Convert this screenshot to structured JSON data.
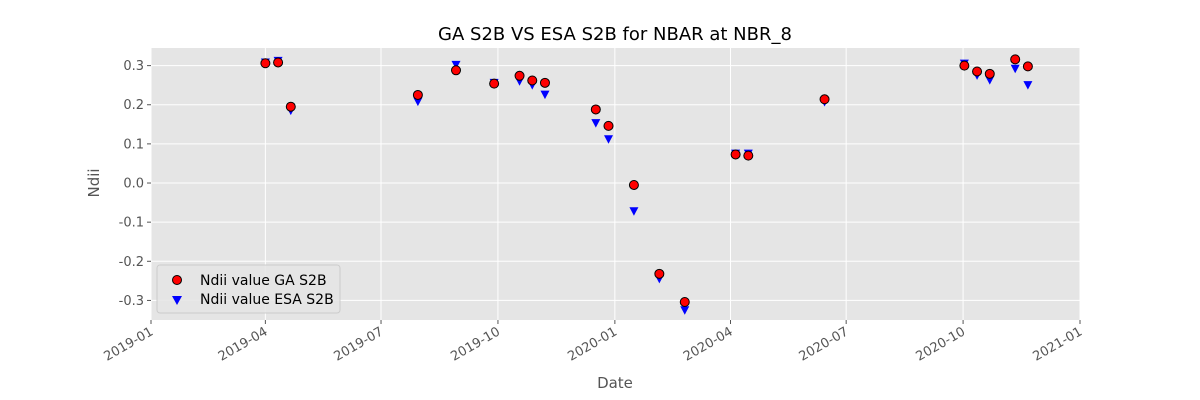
{
  "chart_data": {
    "type": "scatter",
    "title": "GA S2B VS ESA S2B for NBAR at NBR_8",
    "xlabel": "Date",
    "ylabel": "Ndii",
    "xlim": [
      "2019-01-01",
      "2021-01-01"
    ],
    "ylim": [
      -0.35,
      0.345
    ],
    "x_ticks": [
      "2019-01",
      "2019-04",
      "2019-07",
      "2019-10",
      "2020-01",
      "2020-04",
      "2020-07",
      "2020-10",
      "2021-01"
    ],
    "y_ticks": [
      "-0.3",
      "-0.2",
      "-0.1",
      "0.0",
      "0.1",
      "0.2",
      "0.3"
    ],
    "grid": true,
    "legend_position": "lower-left",
    "series": [
      {
        "name": "Ndii value GA S2B",
        "marker": "circle",
        "color": "#ff0000",
        "edge_color": "#000000",
        "points": [
          {
            "x": "2019-04-01",
            "y": 0.306
          },
          {
            "x": "2019-04-11",
            "y": 0.308
          },
          {
            "x": "2019-04-21",
            "y": 0.195
          },
          {
            "x": "2019-07-30",
            "y": 0.225
          },
          {
            "x": "2019-08-29",
            "y": 0.288
          },
          {
            "x": "2019-09-28",
            "y": 0.254
          },
          {
            "x": "2019-10-18",
            "y": 0.274
          },
          {
            "x": "2019-10-28",
            "y": 0.262
          },
          {
            "x": "2019-11-07",
            "y": 0.256
          },
          {
            "x": "2019-12-17",
            "y": 0.188
          },
          {
            "x": "2019-12-27",
            "y": 0.146
          },
          {
            "x": "2020-01-16",
            "y": -0.005
          },
          {
            "x": "2020-02-05",
            "y": -0.232
          },
          {
            "x": "2020-02-25",
            "y": -0.304
          },
          {
            "x": "2020-04-05",
            "y": 0.073
          },
          {
            "x": "2020-04-15",
            "y": 0.07
          },
          {
            "x": "2020-06-14",
            "y": 0.214
          },
          {
            "x": "2020-10-02",
            "y": 0.3
          },
          {
            "x": "2020-10-12",
            "y": 0.285
          },
          {
            "x": "2020-10-22",
            "y": 0.279
          },
          {
            "x": "2020-11-11",
            "y": 0.316
          },
          {
            "x": "2020-11-21",
            "y": 0.298
          }
        ]
      },
      {
        "name": "Ndii value ESA S2B",
        "marker": "triangle-down",
        "color": "#0000ff",
        "points": [
          {
            "x": "2019-04-01",
            "y": 0.308
          },
          {
            "x": "2019-04-11",
            "y": 0.312
          },
          {
            "x": "2019-04-21",
            "y": 0.185
          },
          {
            "x": "2019-07-30",
            "y": 0.208
          },
          {
            "x": "2019-08-29",
            "y": 0.302
          },
          {
            "x": "2019-09-28",
            "y": 0.256
          },
          {
            "x": "2019-10-18",
            "y": 0.26
          },
          {
            "x": "2019-10-28",
            "y": 0.25
          },
          {
            "x": "2019-11-07",
            "y": 0.226
          },
          {
            "x": "2019-12-17",
            "y": 0.153
          },
          {
            "x": "2019-12-27",
            "y": 0.112
          },
          {
            "x": "2020-01-16",
            "y": -0.072
          },
          {
            "x": "2020-02-05",
            "y": -0.245
          },
          {
            "x": "2020-02-25",
            "y": -0.325
          },
          {
            "x": "2020-04-05",
            "y": 0.075
          },
          {
            "x": "2020-04-15",
            "y": 0.075
          },
          {
            "x": "2020-06-14",
            "y": 0.207
          },
          {
            "x": "2020-10-02",
            "y": 0.305
          },
          {
            "x": "2020-10-12",
            "y": 0.275
          },
          {
            "x": "2020-10-22",
            "y": 0.263
          },
          {
            "x": "2020-11-11",
            "y": 0.292
          },
          {
            "x": "2020-11-21",
            "y": 0.25
          }
        ]
      }
    ]
  },
  "colors": {
    "plot_background": "#e5e5e5",
    "grid": "#ffffff",
    "text": "#555555"
  }
}
